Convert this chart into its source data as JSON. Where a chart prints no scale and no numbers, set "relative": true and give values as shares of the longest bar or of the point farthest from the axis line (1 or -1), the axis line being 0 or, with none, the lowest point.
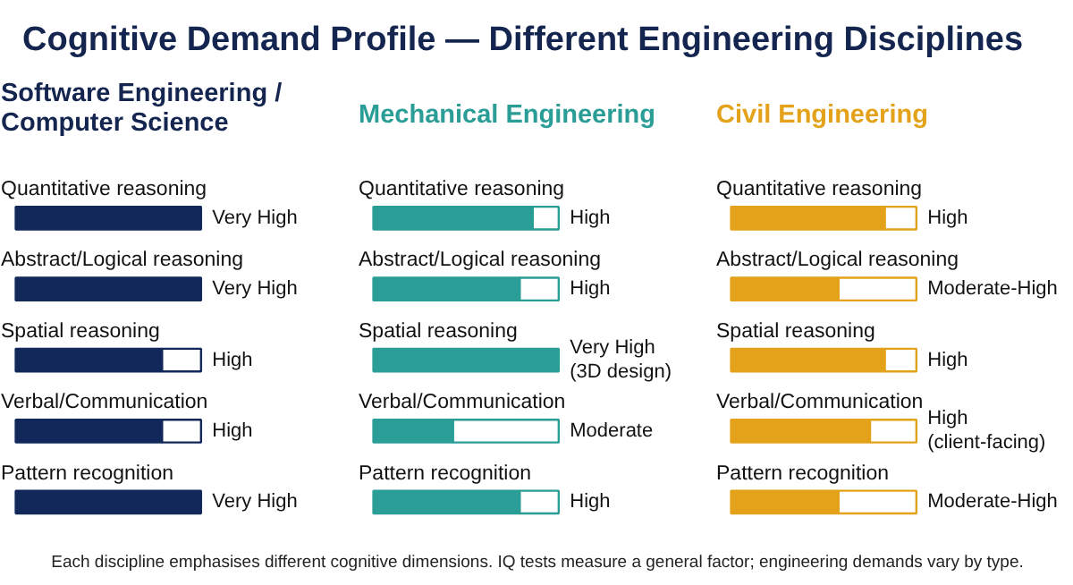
{
  "chart_data": [
    {
      "type": "other",
      "title": "Cognitive Demand Profile — Different Engineering Disciplines",
      "annotations": [
        "Each discipline emphasises different cognitive dimensions. IQ tests measure a general factor; engineering demands vary by type."
      ]
    },
    {
      "type": "bar",
      "orientation": "horizontal",
      "stacked": true,
      "relative": true,
      "title": "Software Engineering / Computer Science",
      "categories": [
        "Quantitative reasoning",
        "Abstract/Logical reasoning",
        "Spatial reasoning",
        "Verbal/Communication",
        "Pattern recognition"
      ],
      "series": [
        {
          "color": "#12285a",
          "values": [
            1,
            1,
            0.79,
            0.79,
            1
          ]
        },
        {
          "color": "#ffffff",
          "values": [
            0,
            0,
            0.21,
            0.21,
            0
          ]
        }
      ],
      "annotations": [
        "Very High",
        "Very High",
        "High",
        "High",
        "Very High"
      ]
    },
    {
      "type": "bar",
      "orientation": "horizontal",
      "stacked": true,
      "relative": true,
      "title": "Mechanical Engineering",
      "categories": [
        "Quantitative reasoning",
        "Abstract/Logical reasoning",
        "Spatial reasoning",
        "Verbal/Communication",
        "Pattern recognition"
      ],
      "series": [
        {
          "color": "#2a9d96",
          "values": [
            0.86,
            0.79,
            1,
            0.43,
            0.79
          ]
        },
        {
          "color": "#ffffff",
          "values": [
            0.14,
            0.21,
            0,
            0.57,
            0.21
          ]
        }
      ],
      "annotations": [
        "High",
        "High",
        "Very High (3D design)",
        "Moderate",
        "High"
      ]
    },
    {
      "type": "bar",
      "orientation": "horizontal",
      "stacked": true,
      "relative": true,
      "title": "Civil Engineering",
      "categories": [
        "Quantitative reasoning",
        "Abstract/Logical reasoning",
        "Spatial reasoning",
        "Verbal/Communication",
        "Pattern recognition"
      ],
      "series": [
        {
          "color": "#e3a21a",
          "values": [
            0.83,
            0.58,
            0.83,
            0.75,
            0.58
          ]
        },
        {
          "color": "#ffffff",
          "values": [
            0.17,
            0.42,
            0.17,
            0.25,
            0.42
          ]
        }
      ],
      "annotations": [
        "High",
        "Moderate-High",
        "High",
        "High (client-facing)",
        "Moderate-High"
      ]
    }
  ]
}
